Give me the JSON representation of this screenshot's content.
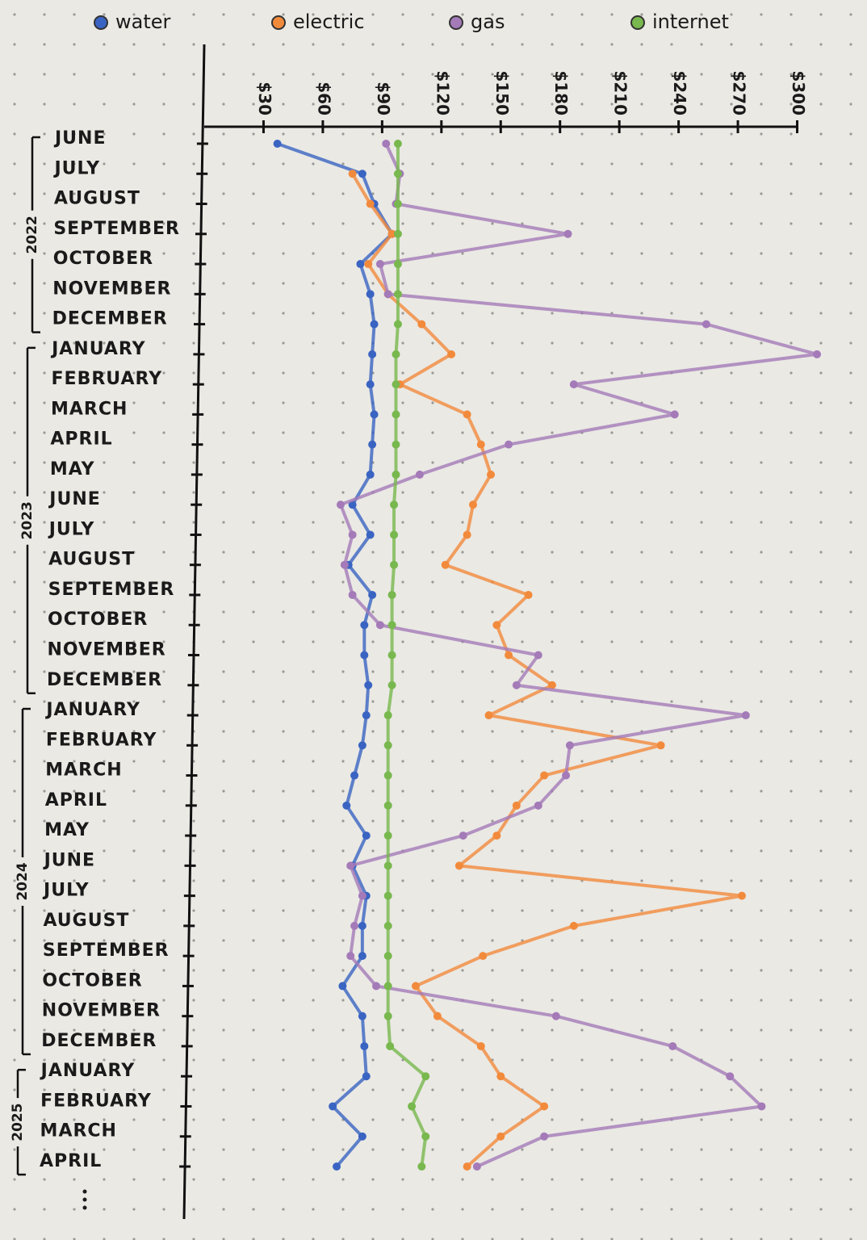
{
  "chart_data": {
    "type": "line",
    "orientation": "horizontal",
    "categories": [
      "JUNE",
      "JULY",
      "AUGUST",
      "SEPTEMBER",
      "OCTOBER",
      "NOVEMBER",
      "DECEMBER",
      "JANUARY",
      "FEBRUARY",
      "MARCH",
      "APRIL",
      "MAY",
      "JUNE",
      "JULY",
      "AUGUST",
      "SEPTEMBER",
      "OCTOBER",
      "NOVEMBER",
      "DECEMBER",
      "JANUARY",
      "FEBRUARY",
      "MARCH",
      "APRIL",
      "MAY",
      "JUNE",
      "JULY",
      "AUGUST",
      "SEPTEMBER",
      "OCTOBER",
      "NOVEMBER",
      "DECEMBER",
      "JANUARY",
      "FEBRUARY",
      "MARCH",
      "APRIL"
    ],
    "year_groups": [
      {
        "label": "2022",
        "size": 7
      },
      {
        "label": "2023",
        "size": 12
      },
      {
        "label": "2024",
        "size": 12
      },
      {
        "label": "2025",
        "size": 4
      }
    ],
    "series": [
      {
        "name": "water",
        "color": "#3a64c2",
        "values": [
          37,
          80,
          86,
          95,
          79,
          84,
          86,
          85,
          84,
          86,
          85,
          84,
          75,
          84,
          73,
          85,
          81,
          81,
          83,
          82,
          80,
          76,
          72,
          82,
          75,
          82,
          80,
          80,
          70,
          80,
          81,
          82,
          65,
          80,
          67
        ]
      },
      {
        "name": "electric",
        "color": "#f28a3c",
        "values": [
          null,
          75,
          84,
          95,
          83,
          93,
          110,
          125,
          99,
          133,
          140,
          145,
          136,
          133,
          122,
          164,
          148,
          154,
          176,
          144,
          231,
          172,
          158,
          148,
          129,
          272,
          187,
          141,
          107,
          118,
          140,
          150,
          172,
          150,
          133
        ]
      },
      {
        "name": "gas",
        "color": "#a47ab8",
        "values": [
          92,
          99,
          97,
          184,
          89,
          93,
          254,
          310,
          187,
          238,
          154,
          109,
          69,
          75,
          71,
          75,
          89,
          169,
          158,
          274,
          185,
          183,
          169,
          131,
          74,
          80,
          76,
          74,
          87,
          178,
          237,
          266,
          282,
          172,
          138
        ]
      },
      {
        "name": "internet",
        "color": "#78b84e",
        "values": [
          98,
          98,
          98,
          98,
          98,
          98,
          98,
          97,
          97,
          97,
          97,
          97,
          96,
          96,
          96,
          95,
          95,
          95,
          95,
          93,
          93,
          93,
          93,
          93,
          93,
          93,
          93,
          93,
          93,
          93,
          94,
          112,
          105,
          112,
          110
        ]
      }
    ],
    "xlim": [
      0,
      310
    ],
    "xticks": [
      {
        "value": 30,
        "label": "$30"
      },
      {
        "value": 60,
        "label": "$60"
      },
      {
        "value": 90,
        "label": "$90"
      },
      {
        "value": 120,
        "label": "$120"
      },
      {
        "value": 150,
        "label": "$150"
      },
      {
        "value": 180,
        "label": "$180"
      },
      {
        "value": 210,
        "label": "$210"
      },
      {
        "value": 240,
        "label": "$240"
      },
      {
        "value": 270,
        "label": "$270"
      },
      {
        "value": 300,
        "label": "$300"
      }
    ],
    "legend": "top"
  }
}
